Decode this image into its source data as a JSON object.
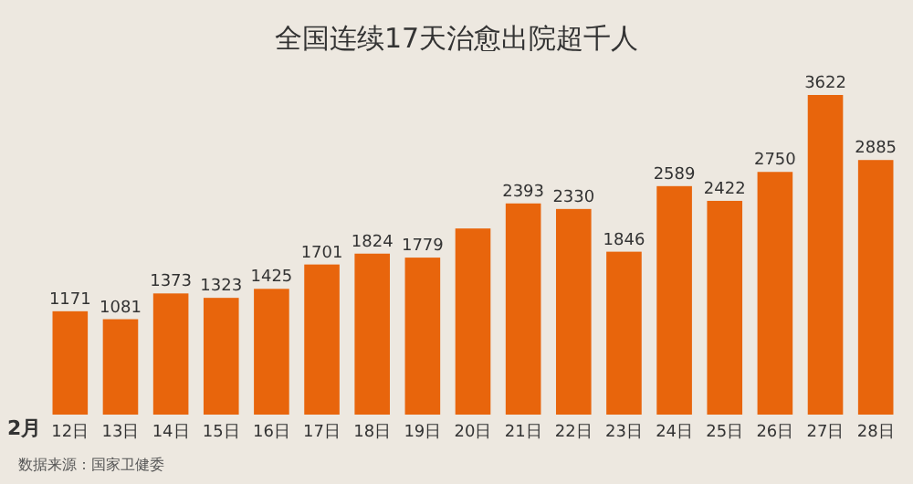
{
  "chart_data": {
    "type": "bar",
    "title": "全国连续17天治愈出院超千人",
    "xlabel": "2月",
    "categories": [
      "12日",
      "13日",
      "14日",
      "15日",
      "16日",
      "17日",
      "18日",
      "19日",
      "20日",
      "21日",
      "22日",
      "23日",
      "24日",
      "25日",
      "26日",
      "27日",
      "28日"
    ],
    "values": [
      1171,
      1081,
      1373,
      1323,
      1425,
      1701,
      1824,
      1779,
      2109,
      2393,
      2330,
      1846,
      2589,
      2422,
      2750,
      3622,
      2885
    ],
    "value_labels": [
      "1171",
      "1081",
      "1373",
      "1323",
      "1425",
      "1701",
      "1824",
      "1779",
      null,
      "2393",
      "2330",
      "1846",
      "2589",
      "2422",
      "2750",
      "3622",
      "2885"
    ],
    "color": "#e8650c",
    "annotations": [
      "数据来源：国家卫健委"
    ]
  }
}
